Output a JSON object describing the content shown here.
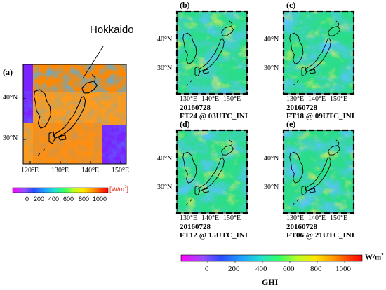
{
  "annotation": "Hokkaido",
  "panel_a": {
    "letter": "(a)",
    "lat_ticks": [
      "40°N",
      "30°N"
    ],
    "lon_ticks": [
      "120°E",
      "130°E",
      "140°E",
      "150°E"
    ],
    "colorbar": {
      "ticks": [
        "0",
        "200",
        "400",
        "600",
        "800",
        "1000"
      ],
      "unit_base": "[W/m",
      "unit_exp": "2",
      "unit_close": "]"
    }
  },
  "panels": [
    {
      "letter": "(b)",
      "date": "20160728",
      "forecast": "FT24 @ 03UTC_INI"
    },
    {
      "letter": "(c)",
      "date": "20160728",
      "forecast": "FT18 @ 09UTC_INI"
    },
    {
      "letter": "(d)",
      "date": "20160728",
      "forecast": "FT12 @ 15UTC_INI"
    },
    {
      "letter": "(e)",
      "date": "20160728",
      "forecast": "FT06 @ 21UTC_INI"
    }
  ],
  "small_lat_ticks": [
    "40°N",
    "30°N"
  ],
  "small_lon_ticks": [
    "130°E",
    "140°E",
    "150°E"
  ],
  "main_colorbar": {
    "ticks": [
      "0",
      "200",
      "400",
      "600",
      "800",
      "1000"
    ],
    "unit_base": "W/m",
    "unit_exp": "2",
    "label": "GHI"
  },
  "colors": {
    "land_outline": "#000000",
    "no_data": "#7a22ff",
    "colormap": [
      "#ff00ff",
      "#9a4dff",
      "#2a4bff",
      "#1f9dff",
      "#22e0d0",
      "#33ff66",
      "#b8ff22",
      "#ffe600",
      "#ff9a00",
      "#ff3300",
      "#ff0000"
    ]
  }
}
